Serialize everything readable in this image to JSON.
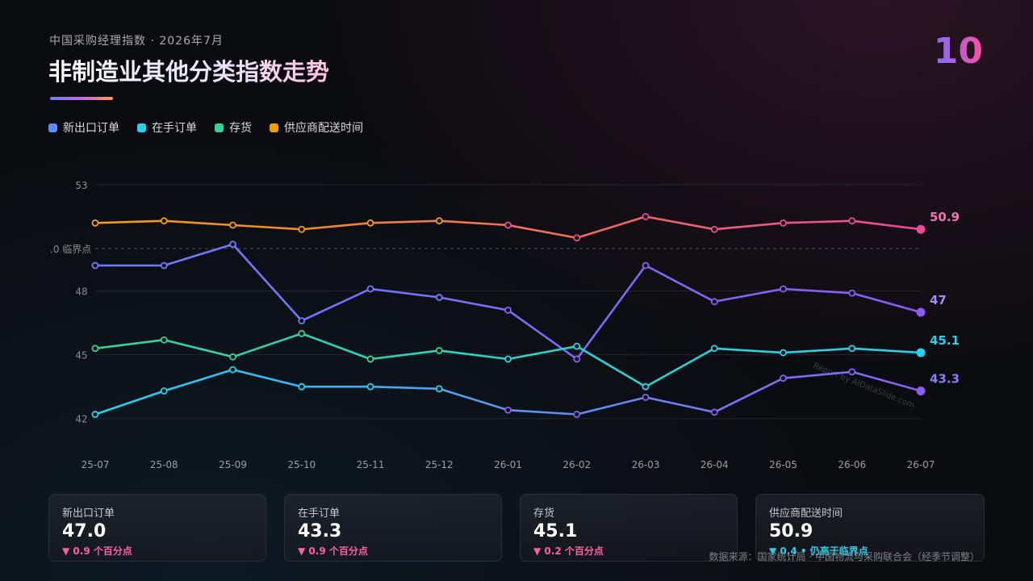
{
  "header": {
    "subtitle": "中国采购经理指数 · 2026年7月",
    "title": "非制造业其他分类指数走势",
    "page_number": "10"
  },
  "colors": {
    "new_export_orders": "#5b8cff",
    "backlog_orders": "#22d3ee",
    "inventory": "#34d399",
    "supplier_delivery": "#f59e0b",
    "accent_purple": "#8b5cf6",
    "accent_pink": "#ec4899",
    "decline": "#ff5fa8",
    "rise": "#22d3ee"
  },
  "chart_data": {
    "type": "line",
    "categories": [
      "25-07",
      "25-08",
      "25-09",
      "25-10",
      "25-11",
      "25-12",
      "26-01",
      "26-02",
      "26-03",
      "26-04",
      "26-05",
      "26-06",
      "26-07"
    ],
    "y_ticks": [
      "53",
      "48",
      "45",
      "42"
    ],
    "ylim": [
      41.8,
      53.3
    ],
    "reference_line": {
      "value": 50,
      "label": ".0 临界点"
    },
    "grid": true,
    "legend_position": "top-left",
    "series": [
      {
        "name": "新出口订单",
        "values": [
          49.2,
          49.2,
          50.2,
          46.6,
          48.1,
          47.7,
          47.1,
          44.8,
          49.2,
          47.5,
          48.1,
          47.9,
          47.0
        ],
        "end_label": "47",
        "gradient": [
          "#6d7cff",
          "#8b5cf6"
        ]
      },
      {
        "name": "在手订单",
        "values": [
          42.2,
          43.3,
          44.3,
          43.5,
          43.5,
          43.4,
          42.4,
          42.2,
          43.0,
          42.3,
          43.9,
          44.2,
          43.3
        ],
        "end_label": "43.3",
        "gradient": [
          "#22d3ee",
          "#8b5cf6"
        ]
      },
      {
        "name": "存货",
        "values": [
          45.3,
          45.7,
          44.9,
          46.0,
          44.8,
          45.2,
          44.8,
          45.4,
          43.5,
          45.3,
          45.1,
          45.3,
          45.1
        ],
        "end_label": "45.1",
        "gradient": [
          "#34d399",
          "#22d3ee"
        ]
      },
      {
        "name": "供应商配送时间",
        "values": [
          51.2,
          51.3,
          51.1,
          50.9,
          51.2,
          51.3,
          51.1,
          50.5,
          51.5,
          50.9,
          51.2,
          51.3,
          50.9
        ],
        "end_label": "50.9",
        "gradient": [
          "#f59e0b",
          "#ec4899"
        ]
      }
    ]
  },
  "cards": [
    {
      "label": "新出口订单",
      "value": "47.0",
      "change": "▼ 0.9 个百分点",
      "direction": "down"
    },
    {
      "label": "在手订单",
      "value": "43.3",
      "change": "▼ 0.9 个百分点",
      "direction": "down"
    },
    {
      "label": "存货",
      "value": "45.1",
      "change": "▼ 0.2 个百分点",
      "direction": "down"
    },
    {
      "label": "供应商配送时间",
      "value": "50.9",
      "change": "▼ 0.4 • 仍高于临界点",
      "direction": "up"
    }
  ],
  "source": "数据来源：国家统计局 · 中国物流与采购联合会（经季节调整）",
  "watermark": "Report by AIDataSlide.com"
}
